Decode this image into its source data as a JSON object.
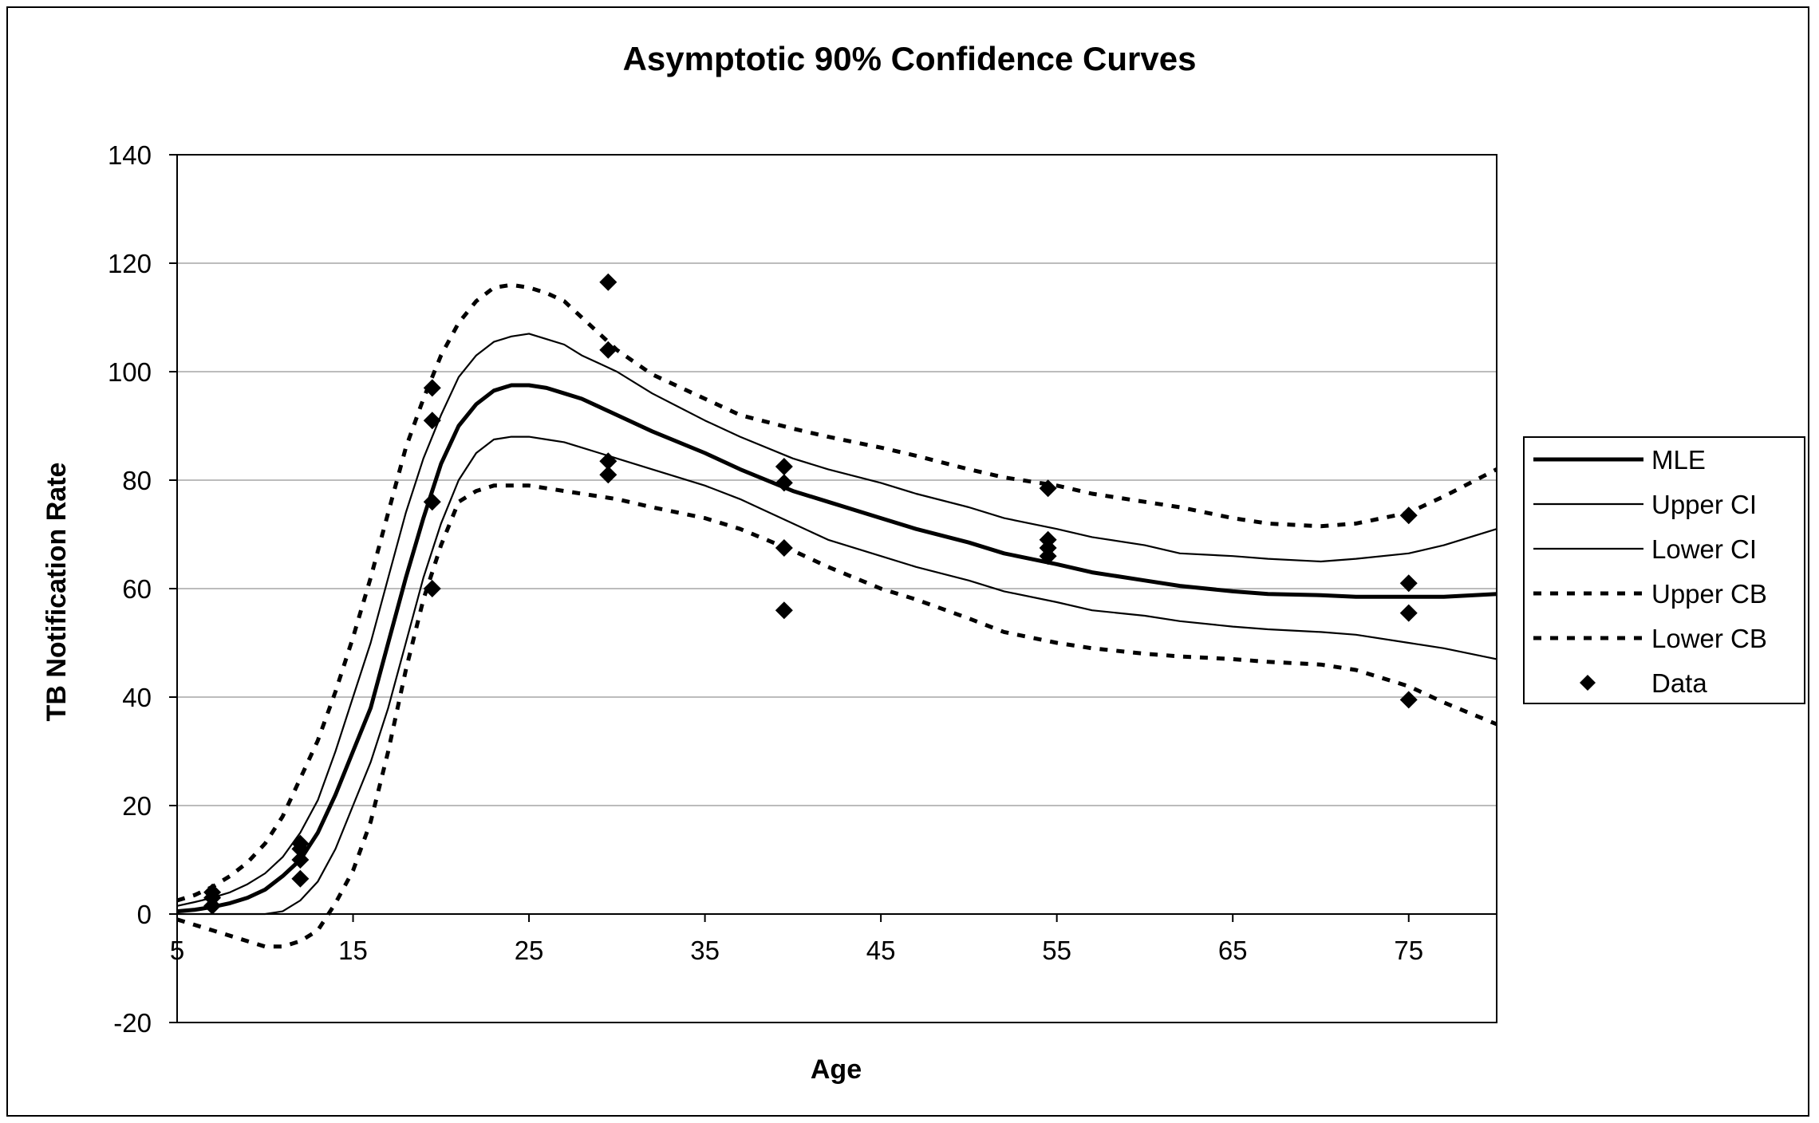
{
  "chart_data": {
    "type": "line",
    "title": "Asymptotic 90%  Confidence Curves",
    "xlabel": "Age",
    "ylabel": "TB Notification Rate",
    "xlim": [
      5,
      80
    ],
    "ylim": [
      -20,
      140
    ],
    "x_ticks": [
      "5",
      "15",
      "25",
      "35",
      "45",
      "55",
      "65",
      "75"
    ],
    "y_ticks": [
      "140",
      "120",
      "100",
      "80",
      "60",
      "40",
      "20",
      "0",
      "-20"
    ],
    "grid": "horizontal",
    "legend_position": "right",
    "x": [
      5,
      6,
      7,
      8,
      9,
      10,
      11,
      12,
      13,
      14,
      15,
      16,
      17,
      18,
      19,
      20,
      21,
      22,
      23,
      24,
      25,
      26,
      27,
      28,
      29,
      30,
      32,
      35,
      37,
      40,
      42,
      45,
      47,
      50,
      52,
      55,
      57,
      60,
      62,
      65,
      67,
      70,
      72,
      75,
      77,
      80
    ],
    "series": [
      {
        "name": "MLE",
        "style": "thick-solid",
        "values": [
          0.5,
          0.8,
          1.3,
          2.0,
          3.0,
          4.5,
          7,
          10,
          15,
          22,
          30,
          38,
          50,
          62,
          73,
          83,
          90,
          94,
          96.5,
          97.5,
          97.5,
          97,
          96,
          95,
          93.5,
          92,
          89,
          85,
          82,
          78,
          76,
          73,
          71,
          68.5,
          66.5,
          64.5,
          63,
          61.5,
          60.5,
          59.5,
          59,
          58.8,
          58.5,
          58.5,
          58.5,
          59
        ]
      },
      {
        "name": "Upper CI",
        "style": "thin-solid",
        "values": [
          1.5,
          2.2,
          3.0,
          4.0,
          5.5,
          7.5,
          10.5,
          15,
          21,
          30,
          40,
          50,
          62,
          74,
          84,
          92,
          99,
          103,
          105.5,
          106.5,
          107,
          106,
          105,
          103,
          101.5,
          100,
          96,
          91,
          88,
          84,
          82,
          79.5,
          77.5,
          75,
          73,
          71,
          69.5,
          68,
          66.5,
          66,
          65.5,
          65,
          65.5,
          66.5,
          68,
          71
        ]
      },
      {
        "name": "Lower CI",
        "style": "thin-solid",
        "values": [
          0,
          0,
          0,
          0,
          0,
          0,
          0.5,
          2.5,
          6,
          12,
          20,
          28,
          38,
          50,
          62,
          72,
          80,
          85,
          87.5,
          88,
          88,
          87.5,
          87,
          86,
          85,
          84,
          82,
          79,
          76.5,
          72,
          69,
          66,
          64,
          61.5,
          59.5,
          57.5,
          56,
          55,
          54,
          53,
          52.5,
          52,
          51.5,
          50,
          49,
          47
        ]
      },
      {
        "name": "Upper CB",
        "style": "dotted",
        "values": [
          2.5,
          3.5,
          5,
          7,
          9.5,
          13,
          18,
          25,
          32,
          41,
          51,
          62,
          74,
          86,
          95,
          103,
          109,
          113,
          115.5,
          116,
          115.5,
          114.5,
          113,
          110,
          107,
          104,
          99.5,
          95,
          92,
          89.5,
          88,
          86,
          84.5,
          82,
          80.5,
          79,
          77.5,
          76,
          75,
          73,
          72,
          71.5,
          72,
          74,
          77,
          82
        ]
      },
      {
        "name": "Lower CB",
        "style": "dotted",
        "values": [
          -1,
          -2,
          -3,
          -4,
          -5,
          -6,
          -6,
          -5,
          -3,
          2,
          8,
          17,
          30,
          45,
          58,
          68,
          76,
          78,
          79,
          79,
          79,
          78.5,
          78,
          77.5,
          77,
          76.5,
          75,
          73,
          71,
          67,
          64,
          60,
          58,
          54.5,
          52,
          50,
          49,
          48,
          47.5,
          47,
          46.5,
          46,
          45,
          42,
          39,
          35
        ]
      },
      {
        "name": "Data",
        "style": "markers",
        "points": [
          [
            7,
            4
          ],
          [
            7,
            3
          ],
          [
            7,
            1.5
          ],
          [
            12,
            13
          ],
          [
            12,
            12
          ],
          [
            12,
            10
          ],
          [
            12,
            6.5
          ],
          [
            19.5,
            97
          ],
          [
            19.5,
            91
          ],
          [
            19.5,
            76
          ],
          [
            19.5,
            60
          ],
          [
            29.5,
            116.5
          ],
          [
            29.5,
            104
          ],
          [
            29.5,
            83.5
          ],
          [
            29.5,
            81
          ],
          [
            39.5,
            82.5
          ],
          [
            39.5,
            79.5
          ],
          [
            39.5,
            67.5
          ],
          [
            39.5,
            56
          ],
          [
            54.5,
            78.5
          ],
          [
            54.5,
            69
          ],
          [
            54.5,
            67.5
          ],
          [
            54.5,
            66
          ],
          [
            75,
            73.5
          ],
          [
            75,
            61
          ],
          [
            75,
            55.5
          ],
          [
            75,
            39.5
          ]
        ]
      }
    ]
  }
}
